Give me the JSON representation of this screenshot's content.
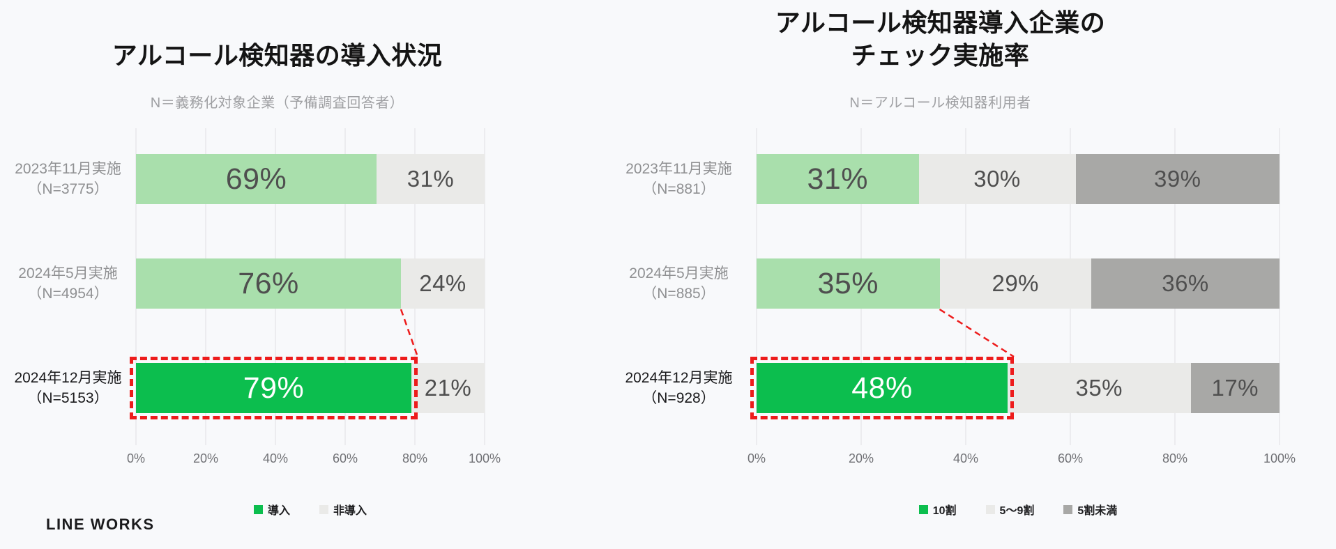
{
  "page": {
    "background": "#F8F9FB",
    "logo_text": "LINE WORKS"
  },
  "palette": {
    "green_light": "#A9DFAC",
    "green_highlight": "#0CBE4E",
    "gray_light": "#EAEAE8",
    "gray_dark": "#A8A8A6",
    "highlight_red": "#ED1C1C",
    "value_text": "#4F4F4F",
    "value_text_on_highlight": "#FFFFFF",
    "row_label_gray": "#8F9092",
    "row_label_dark": "#19191B",
    "gridline": "#DFE0E3"
  },
  "chart_data": [
    {
      "type": "bar",
      "orientation": "horizontal_stacked",
      "title": "アルコール検知器の導入状況",
      "subtitle": "N＝義務化対象企業（予備調査回答者）",
      "x_axis": {
        "min": 0,
        "max": 100,
        "ticks": [
          "0%",
          "20%",
          "40%",
          "60%",
          "80%",
          "100%"
        ],
        "grid": true
      },
      "series": [
        {
          "name": "導入",
          "color_key": "green_light",
          "highlight_color_key": "green_highlight"
        },
        {
          "name": "非導入",
          "color_key": "gray_light"
        }
      ],
      "rows": [
        {
          "label": [
            "2023年11月実施",
            "（N=3775）"
          ],
          "values": [
            69,
            31
          ],
          "value_labels": [
            "69%",
            "31%"
          ],
          "highlight": false
        },
        {
          "label": [
            "2024年5月実施",
            "（N=4954）"
          ],
          "values": [
            76,
            24
          ],
          "value_labels": [
            "76%",
            "24%"
          ],
          "highlight": false
        },
        {
          "label": [
            "2024年12月実施",
            "（N=5153）"
          ],
          "values": [
            79,
            21
          ],
          "value_labels": [
            "79%",
            "21%"
          ],
          "highlight": true
        }
      ],
      "legend": [
        {
          "label": "導入",
          "color_key": "green_highlight"
        },
        {
          "label": "非導入",
          "color_key": "gray_light"
        }
      ],
      "legend_position": "bottom",
      "connector": {
        "from_row": 1,
        "to_row": 2
      }
    },
    {
      "type": "bar",
      "orientation": "horizontal_stacked",
      "title": "アルコール検知器導入企業の\nチェック実施率",
      "subtitle": "N＝アルコール検知器利用者",
      "x_axis": {
        "min": 0,
        "max": 100,
        "ticks": [
          "0%",
          "20%",
          "40%",
          "60%",
          "80%",
          "100%"
        ],
        "grid": true
      },
      "series": [
        {
          "name": "10割",
          "color_key": "green_light",
          "highlight_color_key": "green_highlight"
        },
        {
          "name": "5〜9割",
          "color_key": "gray_light"
        },
        {
          "name": "5割未満",
          "color_key": "gray_dark"
        }
      ],
      "rows": [
        {
          "label": [
            "2023年11月実施",
            "（N=881）"
          ],
          "values": [
            31,
            30,
            39
          ],
          "value_labels": [
            "31%",
            "30%",
            "39%"
          ],
          "highlight": false
        },
        {
          "label": [
            "2024年5月実施",
            "（N=885）"
          ],
          "values": [
            35,
            29,
            36
          ],
          "value_labels": [
            "35%",
            "29%",
            "36%"
          ],
          "highlight": false
        },
        {
          "label": [
            "2024年12月実施",
            "（N=928）"
          ],
          "values": [
            48,
            35,
            17
          ],
          "value_labels": [
            "48%",
            "35%",
            "17%"
          ],
          "highlight": true
        }
      ],
      "legend": [
        {
          "label": "10割",
          "color_key": "green_highlight"
        },
        {
          "label": "5〜9割",
          "color_key": "gray_light"
        },
        {
          "label": "5割未満",
          "color_key": "gray_dark"
        }
      ],
      "legend_position": "bottom",
      "connector": {
        "from_row": 1,
        "to_row": 2
      }
    }
  ]
}
